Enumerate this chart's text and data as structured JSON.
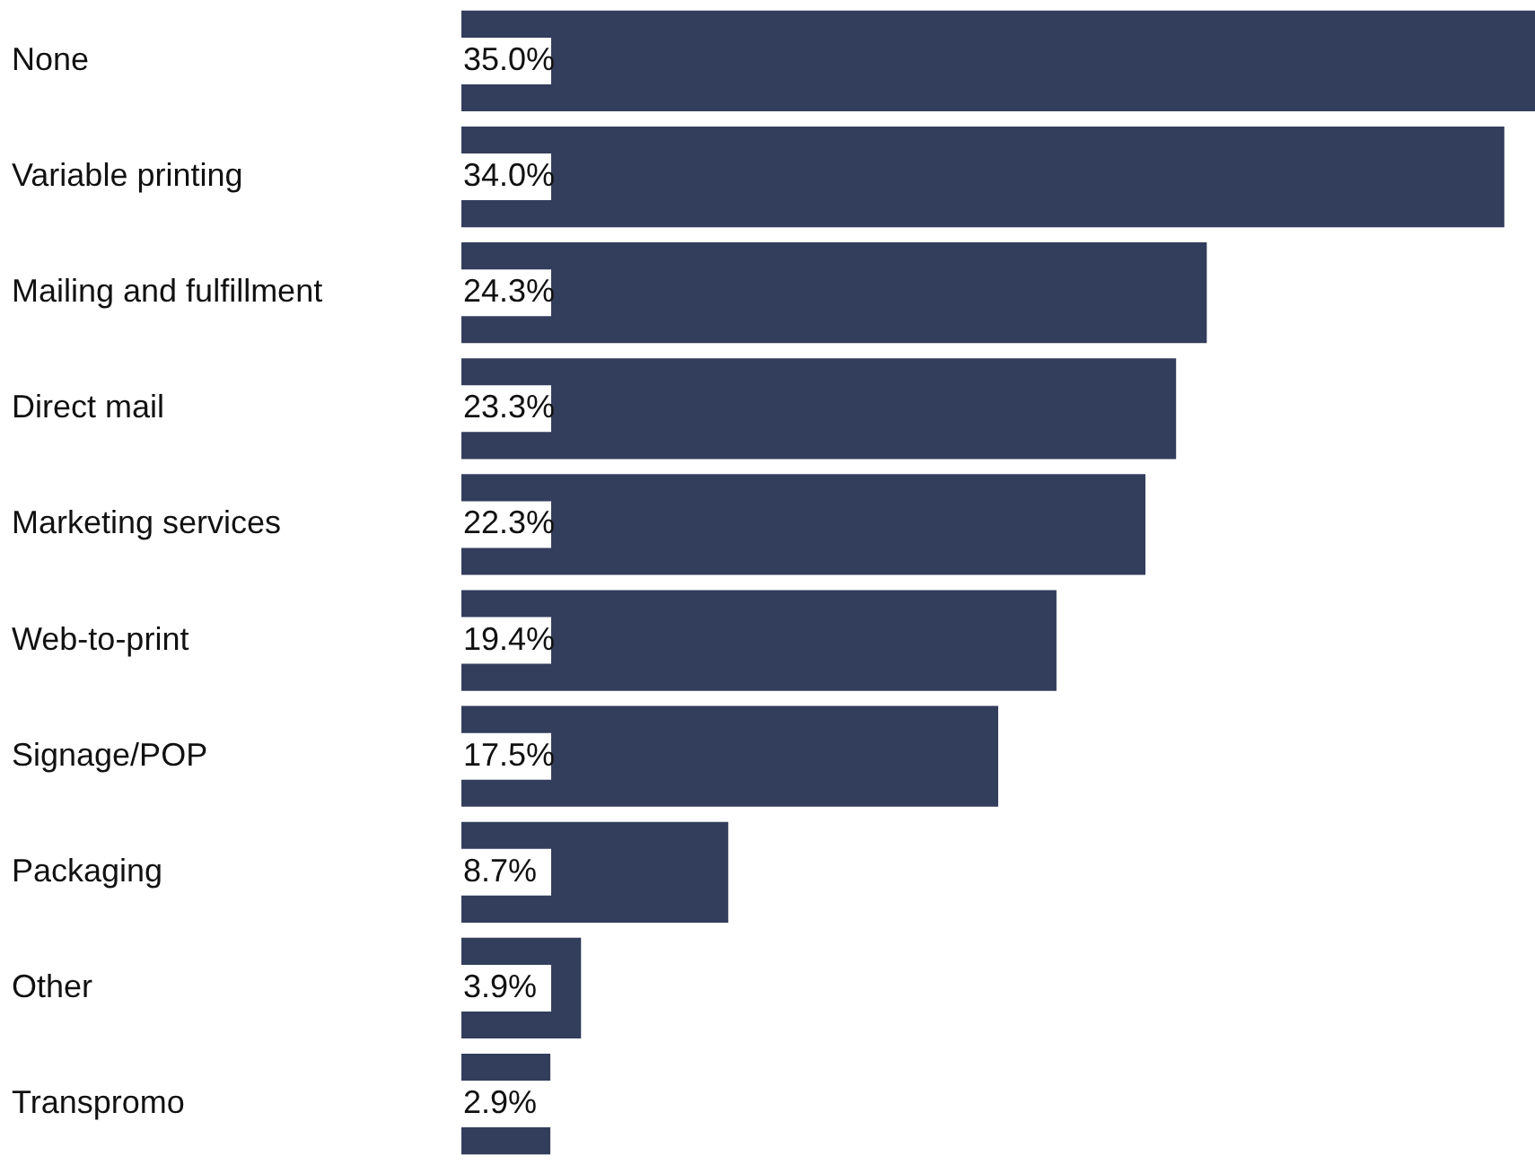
{
  "chart_data": {
    "type": "bar",
    "orientation": "horizontal",
    "categories": [
      "None",
      "Variable printing",
      "Mailing and fulfillment",
      "Direct mail",
      "Marketing services",
      "Web-to-print",
      "Signage/POP",
      "Packaging",
      "Other",
      "Transpromo"
    ],
    "values": [
      35.0,
      34.0,
      24.3,
      23.3,
      22.3,
      19.4,
      17.5,
      8.7,
      3.9,
      2.9
    ],
    "value_labels": [
      "35.0%",
      "34.0%",
      "24.3%",
      "23.3%",
      "22.3%",
      "19.4%",
      "17.5%",
      "8.7%",
      "3.9%",
      "2.9%"
    ],
    "color": "#333d5c",
    "grid": false
  }
}
